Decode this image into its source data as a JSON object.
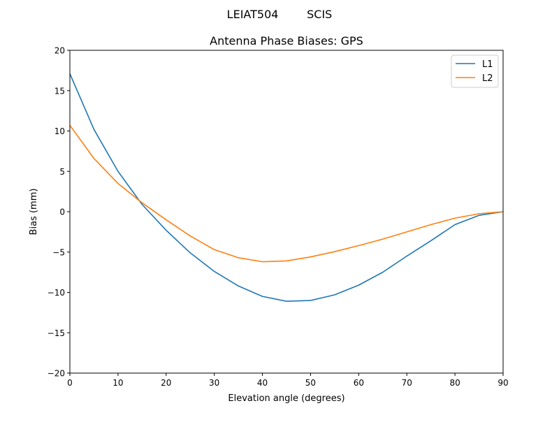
{
  "chart_data": {
    "type": "line",
    "suptitle": "LEIAT504        SCIS",
    "title": "Antenna Phase Biases: GPS",
    "xlabel": "Elevation angle (degrees)",
    "ylabel": "Bias (mm)",
    "xlim": [
      0,
      90
    ],
    "ylim": [
      -20,
      20
    ],
    "xticks": [
      0,
      10,
      20,
      30,
      40,
      50,
      60,
      70,
      80,
      90
    ],
    "yticks": [
      -20,
      -15,
      -10,
      -5,
      0,
      5,
      10,
      15,
      20
    ],
    "ytick_labels": [
      "−20",
      "−15",
      "−10",
      "−5",
      "0",
      "5",
      "10",
      "15",
      "20"
    ],
    "grid": false,
    "legend_position": "top-right",
    "x": [
      0,
      5,
      10,
      15,
      20,
      25,
      30,
      35,
      40,
      45,
      50,
      55,
      60,
      65,
      70,
      75,
      80,
      85,
      90
    ],
    "series": [
      {
        "name": "L1",
        "color": "#1f77b4",
        "values": [
          17.1,
          10.2,
          5.0,
          0.9,
          -2.3,
          -5.1,
          -7.4,
          -9.2,
          -10.5,
          -11.1,
          -11.0,
          -10.3,
          -9.1,
          -7.5,
          -5.5,
          -3.6,
          -1.6,
          -0.45,
          0
        ]
      },
      {
        "name": "L2",
        "color": "#ff7f0e",
        "values": [
          10.7,
          6.6,
          3.5,
          1.1,
          -1.0,
          -3.0,
          -4.7,
          -5.7,
          -6.2,
          -6.1,
          -5.6,
          -4.95,
          -4.2,
          -3.4,
          -2.5,
          -1.6,
          -0.8,
          -0.25,
          0
        ]
      }
    ]
  }
}
